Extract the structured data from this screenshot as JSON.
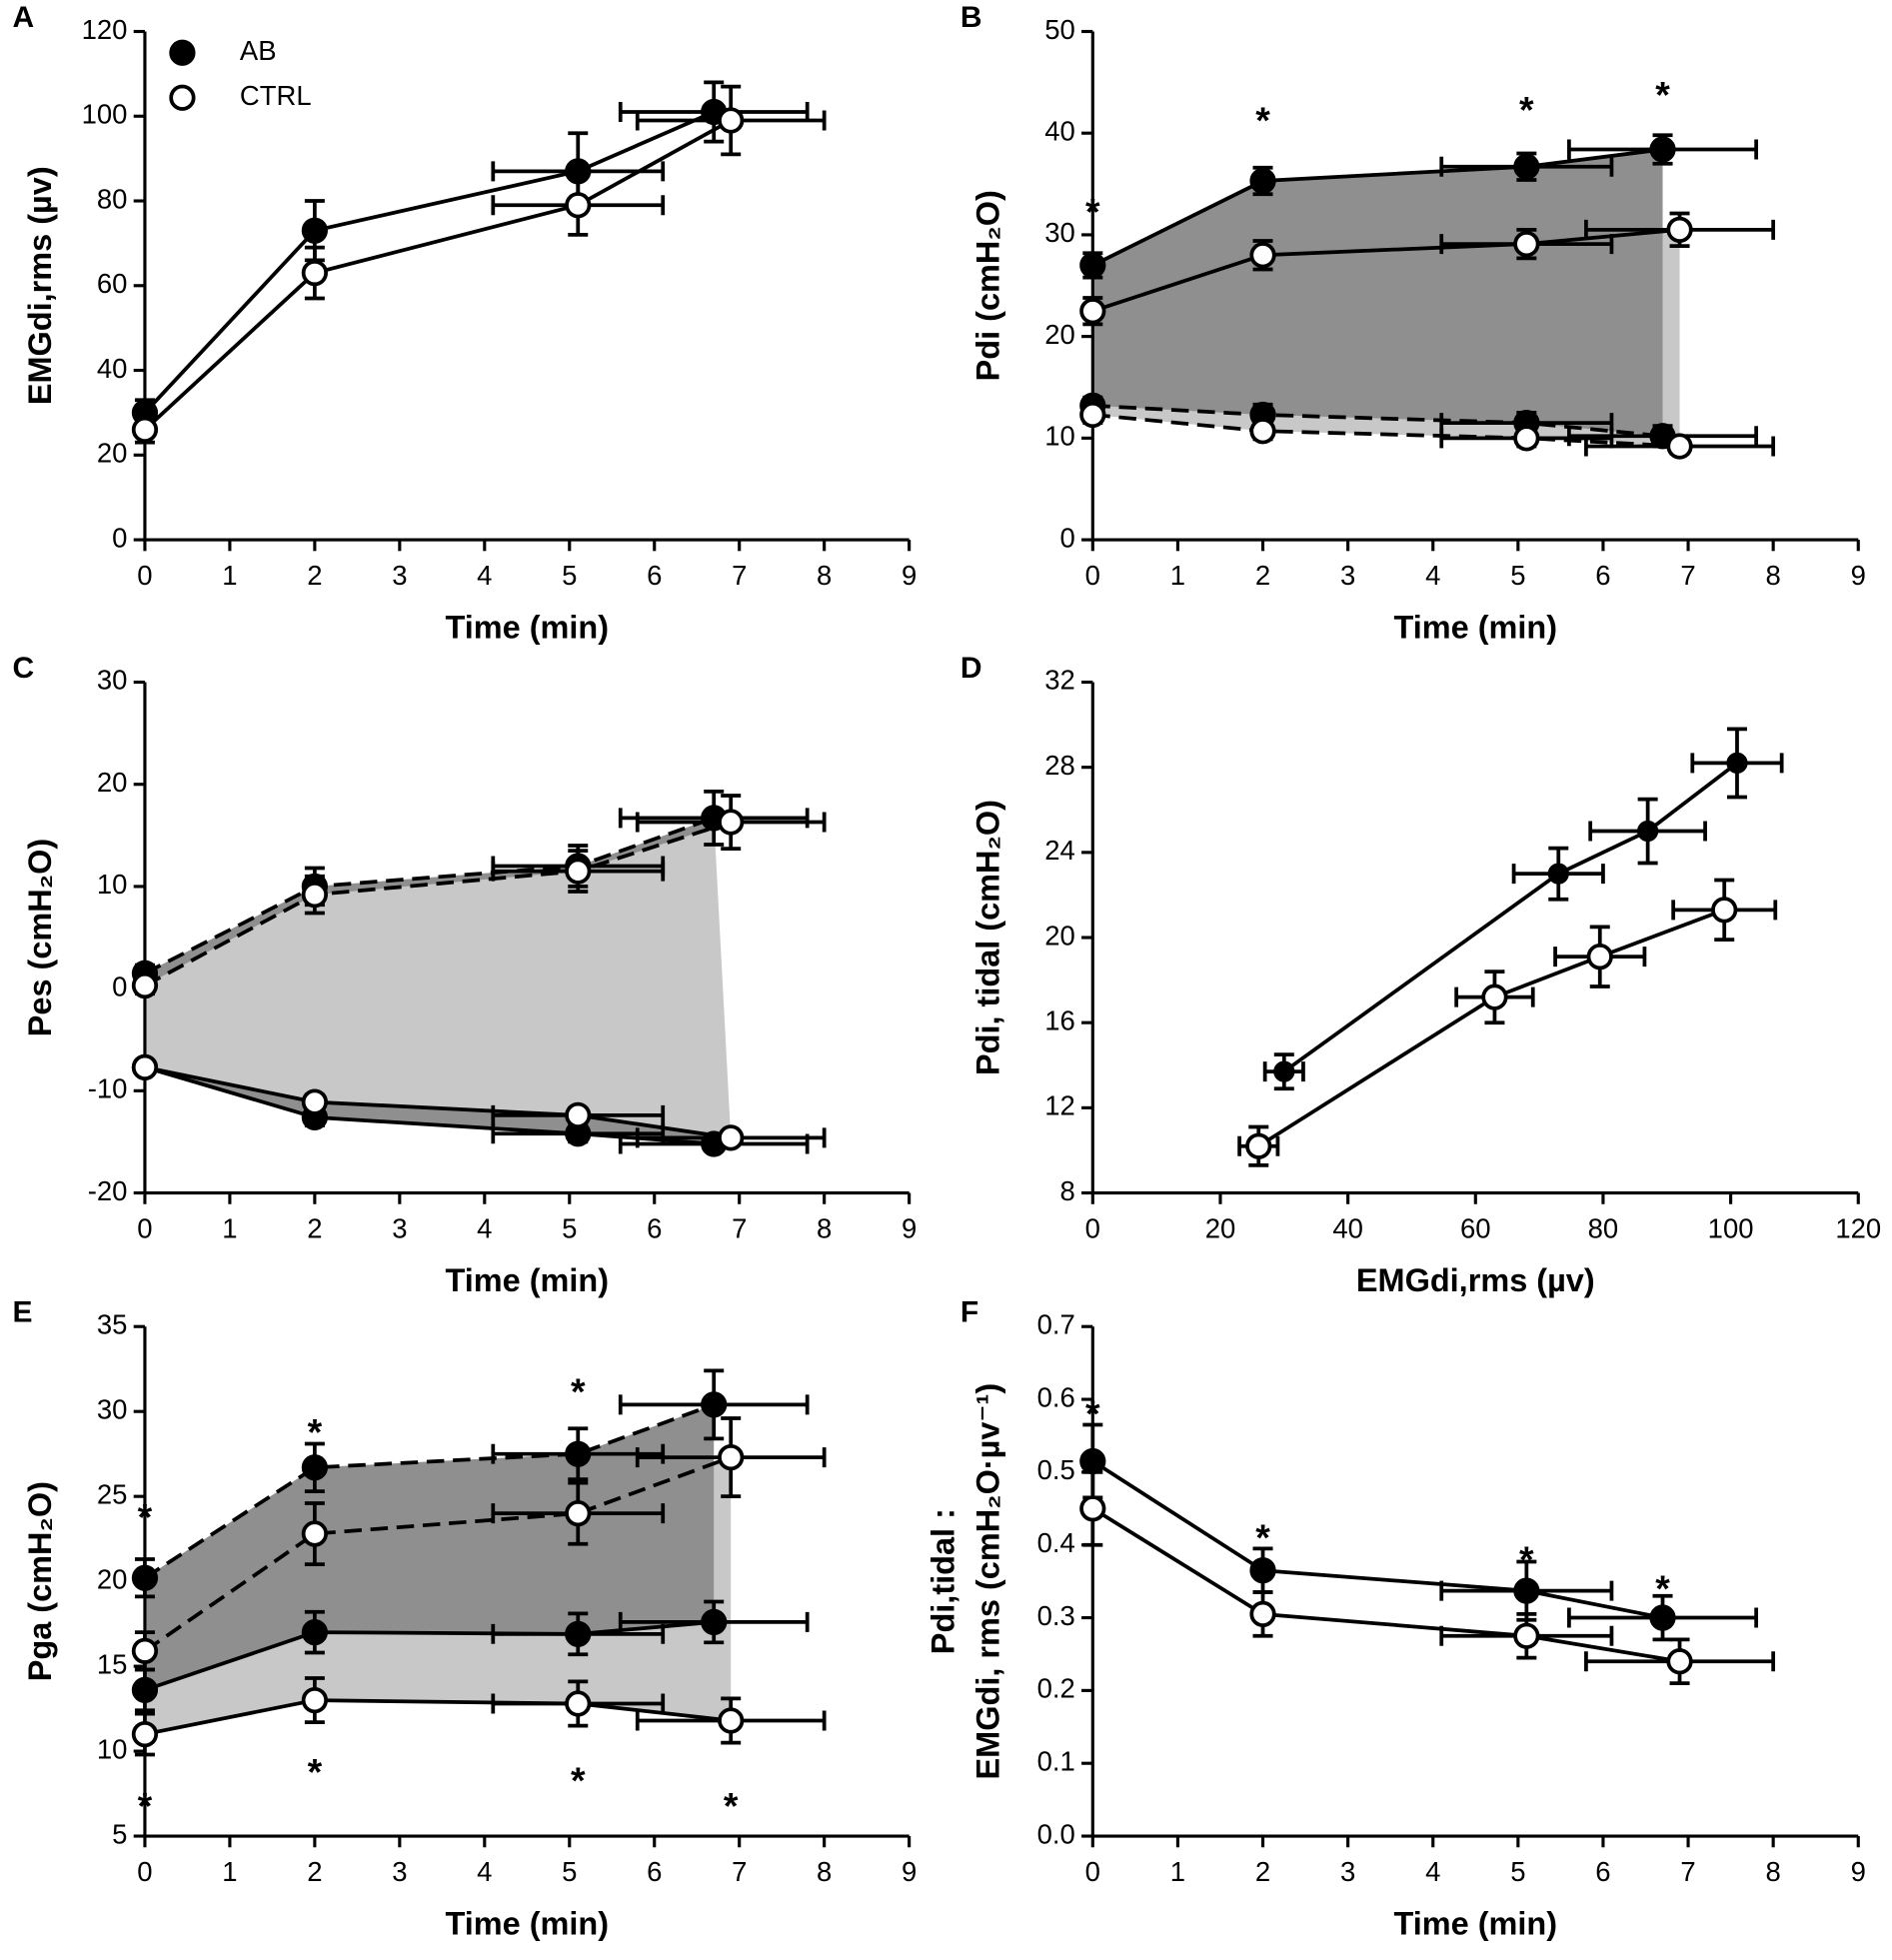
{
  "chart_data": [
    {
      "type": "line",
      "panel": "A",
      "xlabel": "Time (min)",
      "ylabel": "EMGdi,rms (µv)",
      "xlim": [
        0,
        9
      ],
      "xticks": [
        0,
        1,
        2,
        3,
        4,
        5,
        6,
        7,
        8,
        9
      ],
      "ylim": [
        0,
        120
      ],
      "yticks": [
        0,
        20,
        40,
        60,
        80,
        100,
        120
      ],
      "legend": "upper left",
      "series": [
        {
          "name": "AB",
          "color": "#000000",
          "marker": "filled",
          "dash": false,
          "x": [
            0,
            2,
            5.1,
            6.7
          ],
          "values": [
            30,
            73,
            87,
            101
          ],
          "yerr": [
            3,
            7,
            9,
            7
          ],
          "xerr": [
            null,
            null,
            1,
            1.1
          ]
        },
        {
          "name": "CTRL",
          "color": "#000000",
          "marker": "open",
          "dash": false,
          "x": [
            0,
            2,
            5.1,
            6.9
          ],
          "values": [
            26,
            63,
            79,
            99
          ],
          "yerr": [
            3,
            6,
            7,
            8
          ],
          "xerr": [
            null,
            null,
            1,
            1.1
          ]
        }
      ]
    },
    {
      "type": "line",
      "panel": "B",
      "xlabel": "Time (min)",
      "ylabel": "Pdi (cmH₂O)",
      "xlim": [
        0,
        9
      ],
      "xticks": [
        0,
        1,
        2,
        3,
        4,
        5,
        6,
        7,
        8,
        9
      ],
      "ylim": [
        0,
        50
      ],
      "yticks": [
        0,
        10,
        20,
        30,
        40,
        50
      ],
      "shading": [
        {
          "between": [
            1,
            3
          ],
          "color": "#c8c8c8"
        },
        {
          "between": [
            0,
            2
          ],
          "color": "#8f8f8f"
        }
      ],
      "series": [
        {
          "color": "#000000",
          "marker": "filled",
          "dash": false,
          "x": [
            0,
            2,
            5.1,
            6.7
          ],
          "values": [
            27,
            35.3,
            36.7,
            38.4
          ],
          "yerr": [
            1.2,
            1.3,
            1.3,
            1.4
          ],
          "xerr": [
            null,
            null,
            1,
            1.1
          ]
        },
        {
          "color": "#000000",
          "marker": "open",
          "dash": false,
          "x": [
            0,
            2,
            5.1,
            6.9
          ],
          "values": [
            22.5,
            28,
            29.1,
            30.5
          ],
          "yerr": [
            1.3,
            1.4,
            1.4,
            1.6
          ],
          "xerr": [
            null,
            null,
            1,
            1.1
          ]
        },
        {
          "color": "#000000",
          "marker": "filled",
          "dash": true,
          "x": [
            0,
            2,
            5.1,
            6.7
          ],
          "values": [
            13.2,
            12.3,
            11.5,
            10.2
          ],
          "yerr": [
            0.8,
            1,
            1,
            1
          ],
          "xerr": [
            null,
            null,
            1,
            1.1
          ]
        },
        {
          "color": "#000000",
          "marker": "open",
          "dash": true,
          "x": [
            0,
            2,
            5.1,
            6.9
          ],
          "values": [
            12.3,
            10.7,
            10,
            9.2
          ],
          "yerr": [
            0.8,
            0.8,
            0.8,
            0.7
          ],
          "xerr": [
            null,
            null,
            1,
            1.1
          ]
        }
      ],
      "annotations": [
        {
          "text": "*",
          "x": 0,
          "y": 33
        },
        {
          "text": "*",
          "x": 2,
          "y": 42
        },
        {
          "text": "*",
          "x": 5.1,
          "y": 43
        },
        {
          "text": "*",
          "x": 6.7,
          "y": 44.5
        }
      ]
    },
    {
      "type": "line",
      "panel": "C",
      "xlabel": "Time (min)",
      "ylabel": "Pes (cmH₂O)",
      "xlim": [
        0,
        9
      ],
      "xticks": [
        0,
        1,
        2,
        3,
        4,
        5,
        6,
        7,
        8,
        9
      ],
      "ylim": [
        -20,
        30
      ],
      "yticks": [
        -20,
        -10,
        0,
        10,
        20,
        30
      ],
      "shading": [
        {
          "between": [
            2,
            1
          ],
          "color": "#c8c8c8"
        },
        {
          "between": [
            2,
            3
          ],
          "color": "#8f8f8f"
        },
        {
          "between": [
            1,
            0
          ],
          "color": "#8f8f8f"
        }
      ],
      "series": [
        {
          "color": "#000000",
          "marker": "filled",
          "dash": false,
          "x": [
            0,
            2,
            5.1,
            6.7
          ],
          "values": [
            -7.7,
            -12.6,
            -14.2,
            -15.2
          ],
          "yerr": [
            0.5,
            0.8,
            0.8,
            0.6
          ],
          "xerr": [
            null,
            null,
            1,
            1.1
          ]
        },
        {
          "color": "#000000",
          "marker": "open",
          "dash": false,
          "x": [
            0,
            2,
            5.1,
            6.9
          ],
          "values": [
            -7.7,
            -11.1,
            -12.4,
            -14.6
          ],
          "yerr": [
            0.5,
            0.7,
            0.7,
            0.6
          ],
          "xerr": [
            null,
            null,
            1,
            1.1
          ]
        },
        {
          "color": "#000000",
          "marker": "filled",
          "dash": true,
          "x": [
            0,
            2,
            5.1,
            6.7
          ],
          "values": [
            1.5,
            10,
            12,
            16.7
          ],
          "yerr": [
            0.8,
            1.8,
            2,
            2.6
          ],
          "xerr": [
            null,
            null,
            1,
            1.1
          ]
        },
        {
          "color": "#000000",
          "marker": "open",
          "dash": true,
          "x": [
            0,
            2,
            5.1,
            6.9
          ],
          "values": [
            0.3,
            9.2,
            11.5,
            16.3
          ],
          "yerr": [
            0.8,
            1.8,
            2,
            2.6
          ],
          "xerr": [
            null,
            null,
            1,
            1.1
          ]
        }
      ]
    },
    {
      "type": "line",
      "panel": "D",
      "xlabel": "EMGdi,rms (µv)",
      "ylabel": "Pdi, tidal (cmH₂O)",
      "xlim": [
        0,
        120
      ],
      "xticks": [
        0,
        20,
        40,
        60,
        80,
        100,
        120
      ],
      "ylim": [
        8,
        32
      ],
      "yticks": [
        8,
        12,
        16,
        20,
        24,
        28,
        32
      ],
      "series": [
        {
          "color": "#000000",
          "marker": "filled",
          "dash": false,
          "small": true,
          "x": [
            30,
            73,
            87,
            101
          ],
          "values": [
            13.7,
            23,
            25,
            28.2
          ],
          "yerr": [
            0.8,
            1.2,
            1.5,
            1.6
          ],
          "xerr": [
            3,
            7,
            9,
            7
          ]
        },
        {
          "color": "#000000",
          "marker": "open",
          "dash": false,
          "x": [
            26,
            63,
            79.5,
            99
          ],
          "values": [
            10.2,
            17.2,
            19.1,
            21.3
          ],
          "yerr": [
            0.9,
            1.2,
            1.4,
            1.4
          ],
          "xerr": [
            3,
            6,
            7,
            8
          ]
        }
      ]
    },
    {
      "type": "line",
      "panel": "E",
      "xlabel": "Time (min)",
      "ylabel": "Pga (cmH₂O)",
      "xlim": [
        0,
        9
      ],
      "xticks": [
        0,
        1,
        2,
        3,
        4,
        5,
        6,
        7,
        8,
        9
      ],
      "ylim": [
        5,
        35
      ],
      "yticks": [
        5,
        10,
        15,
        20,
        25,
        30,
        35
      ],
      "shading": [
        {
          "between": [
            1,
            3
          ],
          "color": "#c8c8c8"
        },
        {
          "between": [
            0,
            2
          ],
          "color": "#8f8f8f"
        }
      ],
      "series": [
        {
          "color": "#000000",
          "marker": "filled",
          "dash": true,
          "x": [
            0,
            2,
            5.1,
            6.7
          ],
          "values": [
            20.2,
            26.7,
            27.5,
            30.4
          ],
          "yerr": [
            1.1,
            1.4,
            1.5,
            2
          ],
          "xerr": [
            null,
            null,
            1,
            1.1
          ]
        },
        {
          "color": "#000000",
          "marker": "open",
          "dash": true,
          "x": [
            0,
            2,
            5.1,
            6.9
          ],
          "values": [
            15.9,
            22.8,
            24,
            27.3
          ],
          "yerr": [
            1.1,
            1.8,
            1.8,
            2.3
          ],
          "xerr": [
            null,
            null,
            1,
            1.1
          ]
        },
        {
          "color": "#000000",
          "marker": "filled",
          "dash": false,
          "x": [
            0,
            2,
            5.1,
            6.7
          ],
          "values": [
            13.6,
            17,
            16.9,
            17.6
          ],
          "yerr": [
            1.2,
            1.2,
            1.2,
            1.2
          ],
          "xerr": [
            null,
            null,
            1,
            1.1
          ]
        },
        {
          "color": "#000000",
          "marker": "open",
          "dash": false,
          "x": [
            0,
            2,
            5.1,
            6.9
          ],
          "values": [
            11,
            13,
            12.8,
            11.8
          ],
          "yerr": [
            1.2,
            1.3,
            1.3,
            1.3
          ],
          "xerr": [
            null,
            null,
            1,
            1.1
          ]
        }
      ],
      "annotations": [
        {
          "text": "*",
          "x": 0,
          "y": 24.2
        },
        {
          "text": "*",
          "x": 2,
          "y": 29.2
        },
        {
          "text": "*",
          "x": 5.1,
          "y": 31.6
        },
        {
          "text": "*",
          "x": 0,
          "y": 7.2
        },
        {
          "text": "*",
          "x": 2,
          "y": 9.2
        },
        {
          "text": "*",
          "x": 5.1,
          "y": 8.7
        },
        {
          "text": "*",
          "x": 6.9,
          "y": 7.2
        }
      ]
    },
    {
      "type": "line",
      "panel": "F",
      "xlabel": "Time (min)",
      "ylabel": [
        "Pdi,tidal :",
        "EMGdi, rms (cmH₂O·µv⁻¹)"
      ],
      "xlim": [
        0,
        9
      ],
      "xticks": [
        0,
        1,
        2,
        3,
        4,
        5,
        6,
        7,
        8,
        9
      ],
      "ylim": [
        0,
        0.7
      ],
      "yticks": [
        {
          "value": 0,
          "label": "0.0"
        },
        0.1,
        0.2,
        0.3,
        0.4,
        0.5,
        0.6,
        0.7
      ],
      "series": [
        {
          "color": "#000000",
          "marker": "filled",
          "dash": false,
          "x": [
            0,
            2,
            5.1,
            6.7
          ],
          "values": [
            0.515,
            0.365,
            0.337,
            0.3
          ],
          "yerr": [
            0.05,
            0.03,
            0.04,
            0.03
          ],
          "xerr": [
            null,
            null,
            1,
            1.1
          ]
        },
        {
          "color": "#000000",
          "marker": "open",
          "dash": false,
          "x": [
            0,
            2,
            5.1,
            6.9
          ],
          "values": [
            0.45,
            0.305,
            0.275,
            0.24
          ],
          "yerr": [
            0.05,
            0.03,
            0.03,
            0.03
          ],
          "xerr": [
            null,
            null,
            1,
            1.1
          ]
        }
      ],
      "annotations": [
        {
          "text": "*",
          "x": 0,
          "y": 0.59
        },
        {
          "text": "*",
          "x": 2,
          "y": 0.42
        },
        {
          "text": "*",
          "x": 5.1,
          "y": 0.39
        },
        {
          "text": "*",
          "x": 6.7,
          "y": 0.35
        }
      ]
    }
  ]
}
